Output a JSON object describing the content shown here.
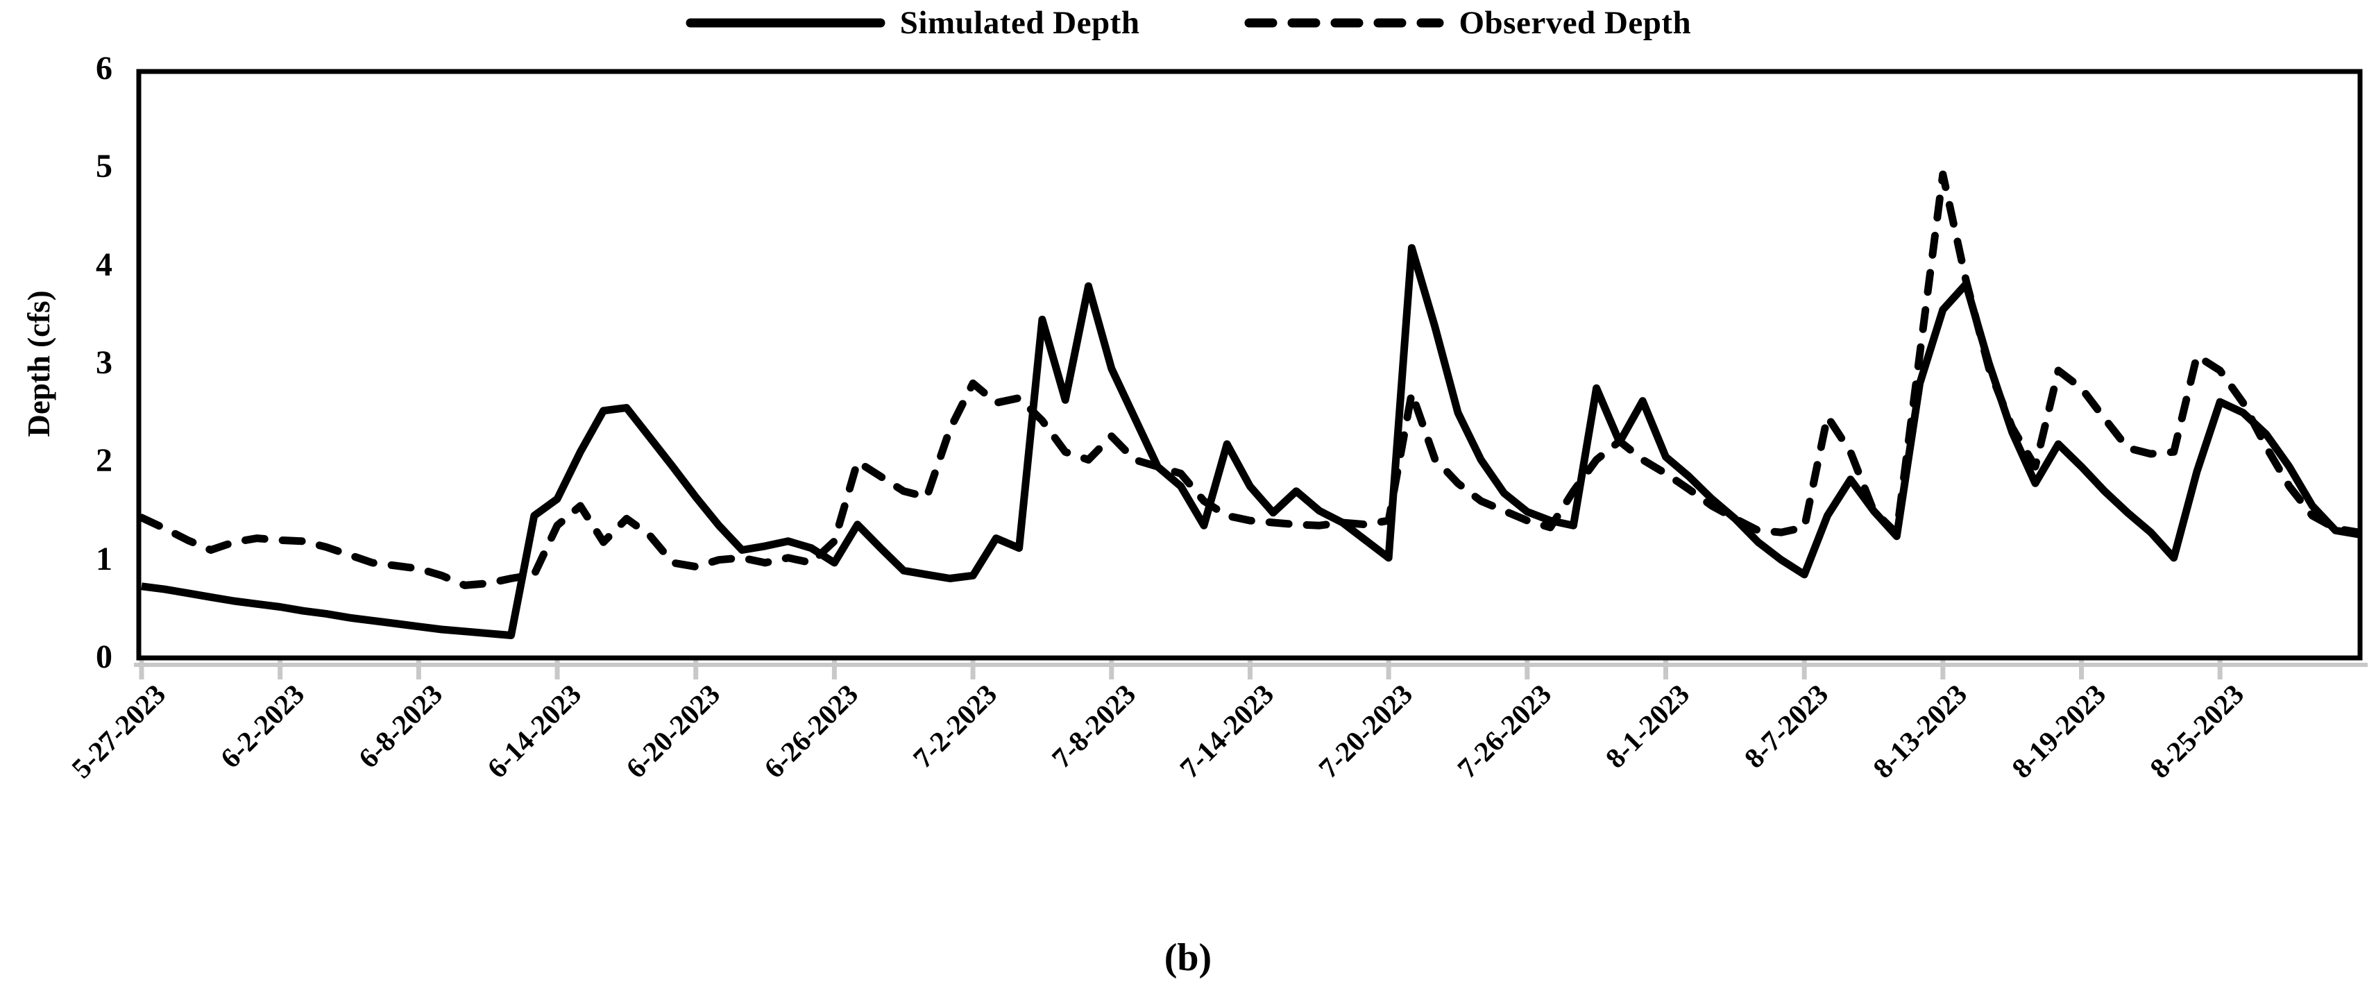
{
  "figure": {
    "caption": "(b)"
  },
  "colors": {
    "line": "#000000",
    "tick_gray": "#c8c8c8",
    "background": "#ffffff"
  },
  "legend": {
    "simulated_label": "Simulated Depth",
    "observed_label": "Observed Depth"
  },
  "chart_data": {
    "type": "line",
    "title": "",
    "xlabel": "",
    "ylabel": "Depth (cfs)",
    "ylim": [
      0,
      6
    ],
    "yticks": [
      0,
      1,
      2,
      3,
      4,
      5,
      6
    ],
    "grid": false,
    "legend_position": "top-center",
    "start_date": "5-27-2023",
    "x_tick_interval_days": 6,
    "x_tick_day_indices": [
      0,
      6,
      12,
      18,
      24,
      30,
      36,
      42,
      48,
      54,
      60,
      66,
      72,
      78,
      84,
      90
    ],
    "x_tick_labels": [
      "5-27-2023",
      "6-2-2023",
      "6-8-2023",
      "6-14-2023",
      "6-20-2023",
      "6-26-2023",
      "7-2-2023",
      "7-8-2023",
      "7-14-2023",
      "7-20-2023",
      "7-26-2023",
      "8-1-2023",
      "8-7-2023",
      "8-13-2023",
      "8-19-2023",
      "8-25-2023"
    ],
    "series": [
      {
        "name": "Simulated Depth",
        "line_style": "solid",
        "values": [
          0.73,
          0.7,
          0.66,
          0.62,
          0.58,
          0.55,
          0.52,
          0.48,
          0.45,
          0.41,
          0.38,
          0.35,
          0.32,
          0.29,
          0.27,
          0.25,
          0.23,
          1.45,
          1.62,
          2.1,
          2.52,
          2.55,
          2.25,
          1.95,
          1.64,
          1.35,
          1.1,
          1.14,
          1.19,
          1.12,
          0.97,
          1.36,
          1.12,
          0.89,
          0.85,
          0.81,
          0.84,
          1.22,
          1.12,
          3.45,
          2.63,
          3.79,
          2.95,
          2.45,
          1.95,
          1.75,
          1.35,
          2.18,
          1.75,
          1.48,
          1.7,
          1.5,
          1.38,
          1.2,
          1.02,
          4.18,
          3.38,
          2.5,
          2.02,
          1.68,
          1.49,
          1.4,
          1.35,
          2.75,
          2.2,
          2.62,
          2.05,
          1.85,
          1.62,
          1.42,
          1.18,
          1.0,
          0.85,
          1.45,
          1.82,
          1.5,
          1.24,
          2.8,
          3.55,
          3.81,
          3.0,
          2.3,
          1.78,
          2.18,
          1.95,
          1.7,
          1.48,
          1.28,
          1.02,
          1.9,
          2.61,
          2.5,
          2.28,
          1.95,
          1.55,
          1.3,
          1.26
        ]
      },
      {
        "name": "Observed Depth",
        "line_style": "dashed",
        "values": [
          1.43,
          1.32,
          1.2,
          1.1,
          1.18,
          1.22,
          1.2,
          1.19,
          1.13,
          1.05,
          0.97,
          0.94,
          0.91,
          0.84,
          0.74,
          0.76,
          0.81,
          0.85,
          1.35,
          1.55,
          1.18,
          1.42,
          1.25,
          0.97,
          0.93,
          1.0,
          1.02,
          0.97,
          1.02,
          0.97,
          1.19,
          2.0,
          1.85,
          1.7,
          1.64,
          2.33,
          2.8,
          2.6,
          2.65,
          2.42,
          2.1,
          2.02,
          2.26,
          2.02,
          1.95,
          1.88,
          1.6,
          1.45,
          1.4,
          1.38,
          1.36,
          1.35,
          1.38,
          1.36,
          1.4,
          2.7,
          2.03,
          1.78,
          1.6,
          1.5,
          1.4,
          1.33,
          1.7,
          2.02,
          2.21,
          2.02,
          1.88,
          1.72,
          1.55,
          1.42,
          1.3,
          1.28,
          1.33,
          2.46,
          2.1,
          1.5,
          1.27,
          3.1,
          4.93,
          3.85,
          2.95,
          2.35,
          1.95,
          2.93,
          2.75,
          2.44,
          2.14,
          2.08,
          2.1,
          3.08,
          2.93,
          2.6,
          2.15,
          1.75,
          1.45,
          1.32,
          1.28
        ]
      }
    ]
  }
}
